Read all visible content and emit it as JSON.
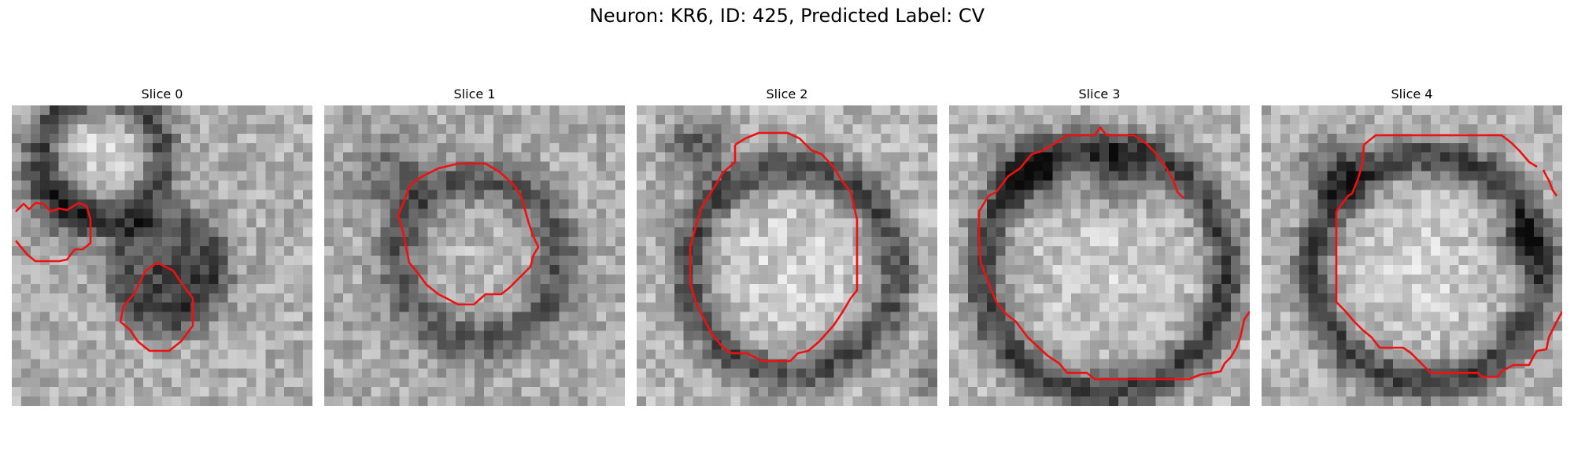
{
  "figure": {
    "title": "Neuron: KR6, ID: 425, Predicted Label: CV",
    "contour_color": "#ee1111",
    "slices": [
      {
        "title": "Slice 0"
      },
      {
        "title": "Slice 1"
      },
      {
        "title": "Slice 2"
      },
      {
        "title": "Slice 3"
      },
      {
        "title": "Slice 4"
      }
    ]
  }
}
